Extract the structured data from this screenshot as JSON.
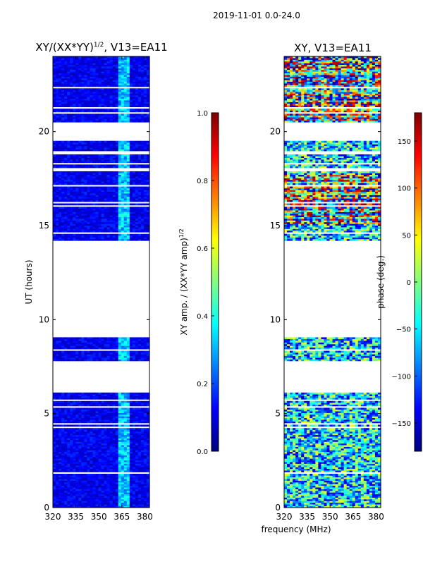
{
  "figure_title": "2019-11-01 0.0-24.0",
  "x_label_shared": "frequency (MHz)",
  "chart_data": [
    {
      "type": "heatmap",
      "title": "XY/(XX*YY)",
      "title_exponent": "1/2",
      "title_suffix": ", V13=EA11",
      "xlabel": "frequency (MHz)",
      "ylabel": "UT (hours)",
      "xlim": [
        320,
        383
      ],
      "ylim": [
        0,
        24
      ],
      "xticks": [
        "320",
        "335",
        "350",
        "365",
        "380"
      ],
      "yticks": [
        "0",
        "5",
        "10",
        "15",
        "20"
      ],
      "colormap": "jet",
      "colorbar": {
        "label": "XY amp. / (XX*YY amp)",
        "label_exponent": "1/2",
        "range": [
          0.0,
          1.0
        ],
        "ticks": [
          "0.0",
          "0.2",
          "0.4",
          "0.6",
          "0.8",
          "1.0"
        ]
      },
      "hot_band_mhz": [
        363,
        370
      ],
      "data_blocks_hours": [
        [
          0,
          6.1
        ],
        [
          7.8,
          9.0
        ],
        [
          14.2,
          20.5
        ],
        [
          20.5,
          24
        ]
      ],
      "gaps_hours": [
        [
          6.1,
          7.8
        ],
        [
          9.0,
          14.2
        ],
        [
          20.5,
          19.5
        ]
      ]
    },
    {
      "type": "heatmap",
      "title": "XY, V13=EA11",
      "xlabel": "frequency (MHz)",
      "ylabel": "",
      "xlim": [
        320,
        383
      ],
      "ylim": [
        0,
        24
      ],
      "xticks": [
        "320",
        "335",
        "350",
        "365",
        "380"
      ],
      "yticks": [
        "0",
        "5",
        "10",
        "15",
        "20"
      ],
      "colormap": "jet",
      "colorbar": {
        "label": "phase (deg.)",
        "range": [
          -180,
          180
        ],
        "ticks": [
          "−150",
          "−100",
          "−50",
          "0",
          "50",
          "100",
          "150"
        ]
      },
      "data_blocks_hours": [
        [
          0,
          6.1
        ],
        [
          7.8,
          9.0
        ],
        [
          14.2,
          20.5
        ],
        [
          20.5,
          24
        ]
      ]
    }
  ]
}
